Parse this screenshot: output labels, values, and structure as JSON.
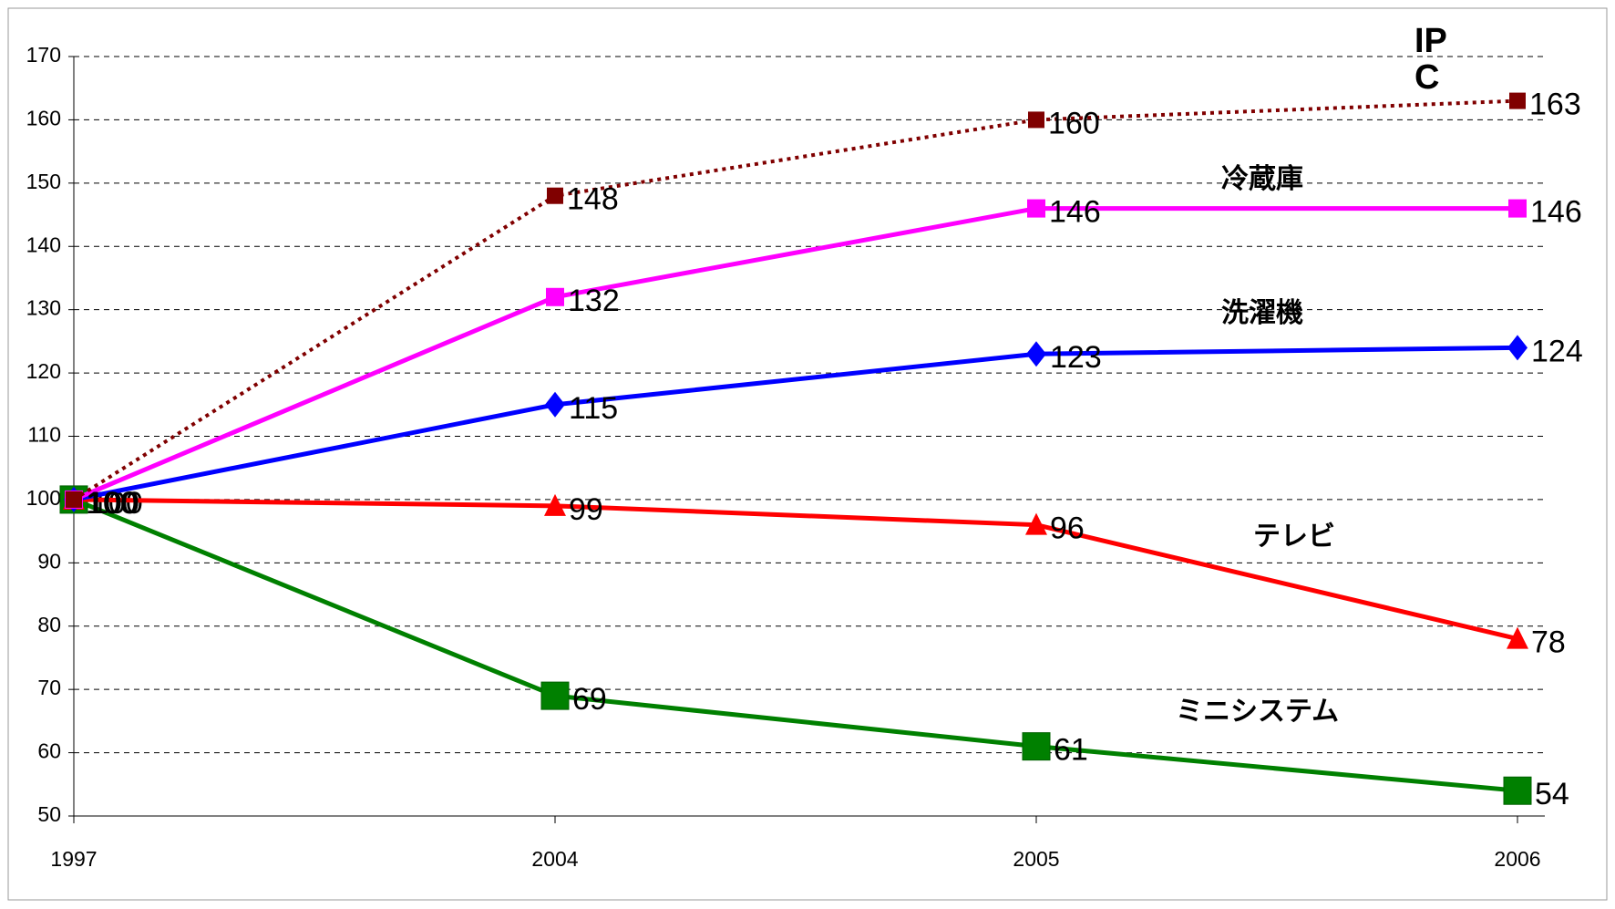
{
  "chart_data": {
    "type": "line",
    "categories": [
      "1997",
      "2004",
      "2005",
      "2006"
    ],
    "ylim": [
      50,
      170
    ],
    "yticks": [
      50,
      60,
      70,
      80,
      90,
      100,
      110,
      120,
      130,
      140,
      150,
      160,
      170
    ],
    "grid": true,
    "series": [
      {
        "name": "ミニシステム",
        "color": "#008000",
        "marker": "square",
        "values": [
          100,
          69,
          61,
          54
        ]
      },
      {
        "name": "テレビ",
        "color": "#ff0000",
        "marker": "triangle",
        "values": [
          100,
          99,
          96,
          78
        ]
      },
      {
        "name": "洗濯機",
        "color": "#0000ff",
        "marker": "diamond",
        "values": [
          100,
          115,
          123,
          124
        ]
      },
      {
        "name": "冷蔵庫",
        "color": "#ff00ff",
        "marker": "square",
        "values": [
          100,
          132,
          146,
          146
        ]
      },
      {
        "name": "IPC",
        "color": "#800000",
        "marker": "square",
        "style": "dotted",
        "values": [
          100,
          148,
          160,
          163
        ]
      }
    ]
  }
}
